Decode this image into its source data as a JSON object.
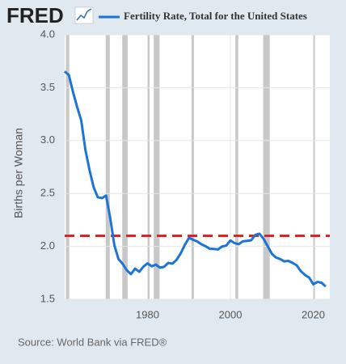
{
  "logo": "FRED",
  "chart_data": {
    "type": "line",
    "y_label": "Births per Woman",
    "source": "Source: World Bank via FRED®",
    "x": [
      1960,
      1961,
      1962,
      1963,
      1964,
      1965,
      1966,
      1967,
      1968,
      1969,
      1970,
      1971,
      1972,
      1973,
      1974,
      1975,
      1976,
      1977,
      1978,
      1979,
      1980,
      1981,
      1982,
      1983,
      1984,
      1985,
      1986,
      1987,
      1988,
      1989,
      1990,
      1991,
      1992,
      1993,
      1994,
      1995,
      1996,
      1997,
      1998,
      1999,
      2000,
      2001,
      2002,
      2003,
      2004,
      2005,
      2006,
      2007,
      2008,
      2009,
      2010,
      2011,
      2012,
      2013,
      2014,
      2015,
      2016,
      2017,
      2018,
      2019,
      2020,
      2021,
      2022,
      2023
    ],
    "series": [
      {
        "name": "Fertility Rate, Total for the United States",
        "color": "#1c74d8",
        "values": [
          3.654,
          3.62,
          3.461,
          3.319,
          3.19,
          2.913,
          2.721,
          2.558,
          2.464,
          2.456,
          2.48,
          2.266,
          2.01,
          1.879,
          1.835,
          1.774,
          1.738,
          1.79,
          1.76,
          1.808,
          1.84,
          1.812,
          1.828,
          1.799,
          1.807,
          1.844,
          1.837,
          1.872,
          1.934,
          2.014,
          2.081,
          2.063,
          2.047,
          2.02,
          2.002,
          1.978,
          1.976,
          1.971,
          1.999,
          2.008,
          2.056,
          2.031,
          2.021,
          2.048,
          2.052,
          2.057,
          2.108,
          2.12,
          2.072,
          2.002,
          1.931,
          1.895,
          1.881,
          1.858,
          1.863,
          1.844,
          1.821,
          1.766,
          1.73,
          1.706,
          1.642,
          1.664,
          1.657,
          1.621
        ]
      }
    ],
    "recessions": [
      [
        1960.3,
        1961.1
      ],
      [
        1969.9,
        1970.9
      ],
      [
        1973.9,
        1975.2
      ],
      [
        1980.0,
        1980.5
      ],
      [
        1981.5,
        1982.9
      ],
      [
        1990.6,
        1991.2
      ],
      [
        2001.2,
        2001.9
      ],
      [
        2007.9,
        2009.5
      ],
      [
        2020.1,
        2020.4
      ]
    ],
    "recession_color": "#c8c8c8",
    "reference_line": {
      "value": 2.1,
      "color": "#d62728"
    },
    "xlim": [
      1960,
      2024
    ],
    "xticks": [
      1980,
      2000,
      2020
    ],
    "ylim": [
      1.5,
      4.0
    ],
    "yticks": [
      1.5,
      {
        "value": 2.0,
        "label": "2.0"
      },
      2.5,
      {
        "value": 3.0,
        "label": "3.0"
      },
      3.5,
      {
        "value": 4.0,
        "label": "4.0"
      }
    ],
    "grid": true
  }
}
